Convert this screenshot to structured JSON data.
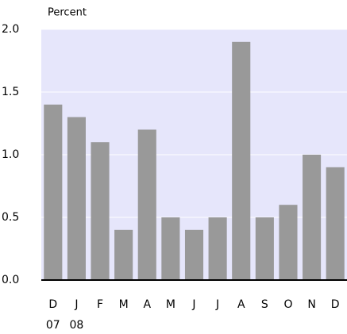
{
  "chart_data": {
    "type": "bar",
    "title": "Percent",
    "categories": [
      "D",
      "J",
      "F",
      "M",
      "A",
      "M",
      "J",
      "J",
      "A",
      "S",
      "O",
      "N",
      "D"
    ],
    "year_labels": [
      "07",
      "08"
    ],
    "values": [
      1.4,
      1.3,
      1.1,
      0.4,
      1.2,
      0.5,
      0.4,
      0.5,
      1.9,
      0.5,
      0.6,
      1.0,
      0.9
    ],
    "color": "#999999",
    "ylim": [
      0,
      2
    ],
    "yticks": [
      {
        "value": 0,
        "label": "0.0"
      },
      {
        "value": 0.5,
        "label": "0.5"
      },
      {
        "value": 1,
        "label": "1.0"
      },
      {
        "value": 1.5,
        "label": "1.5"
      },
      {
        "value": 2,
        "label": "2.0"
      }
    ],
    "grid": true
  }
}
